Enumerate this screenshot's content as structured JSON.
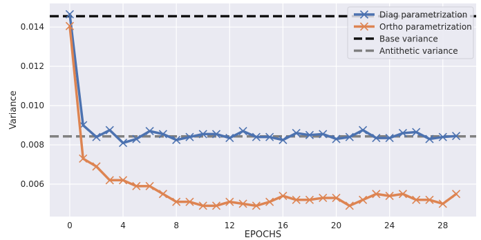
{
  "chart_data": {
    "type": "line",
    "title": "",
    "xlabel": "EPOCHS",
    "ylabel": "Variance",
    "xlim": [
      -1.5,
      30.5
    ],
    "ylim": [
      0.00435,
      0.0152
    ],
    "xticks": [
      0,
      4,
      8,
      12,
      16,
      20,
      24,
      28
    ],
    "xtick_labels": [
      "0",
      "4",
      "8",
      "12",
      "16",
      "20",
      "24",
      "28"
    ],
    "yticks": [
      0.006,
      0.008,
      0.01,
      0.012,
      0.014
    ],
    "ytick_labels": [
      "0.006",
      "0.008",
      "0.010",
      "0.012",
      "0.014"
    ],
    "grid": true,
    "legend_position": "top-right",
    "x": [
      0,
      1,
      2,
      3,
      4,
      5,
      6,
      7,
      8,
      9,
      10,
      11,
      12,
      13,
      14,
      15,
      16,
      17,
      18,
      19,
      20,
      21,
      22,
      23,
      24,
      25,
      26,
      27,
      28,
      29
    ],
    "series": [
      {
        "name": "Diag parametrization",
        "color": "#4c72b0",
        "style": "line-x",
        "values": [
          0.01465,
          0.009,
          0.0084,
          0.00875,
          0.0081,
          0.0083,
          0.0087,
          0.00855,
          0.00825,
          0.0084,
          0.00855,
          0.00855,
          0.00835,
          0.0087,
          0.0084,
          0.0084,
          0.00825,
          0.0086,
          0.0085,
          0.00855,
          0.0083,
          0.0084,
          0.00875,
          0.00835,
          0.00835,
          0.0086,
          0.00865,
          0.0083,
          0.0084,
          0.00845
        ]
      },
      {
        "name": "Ortho parametrization",
        "color": "#dd8452",
        "style": "line-x",
        "values": [
          0.01405,
          0.0073,
          0.0069,
          0.0062,
          0.0062,
          0.0059,
          0.0059,
          0.0055,
          0.0051,
          0.0051,
          0.0049,
          0.0049,
          0.0051,
          0.005,
          0.0049,
          0.0051,
          0.0054,
          0.0052,
          0.0052,
          0.0053,
          0.0053,
          0.0049,
          0.0052,
          0.0055,
          0.0054,
          0.0055,
          0.0052,
          0.0052,
          0.005,
          0.0055
        ]
      }
    ],
    "reference_lines": [
      {
        "name": "Base variance",
        "value": 0.01455,
        "color": "#111111",
        "style": "dashed"
      },
      {
        "name": "Antithetic variance",
        "value": 0.00843,
        "color": "#808080",
        "style": "dashed"
      }
    ],
    "colors": {
      "plot_background": "#eaeaf2",
      "grid": "#ffffff"
    }
  }
}
